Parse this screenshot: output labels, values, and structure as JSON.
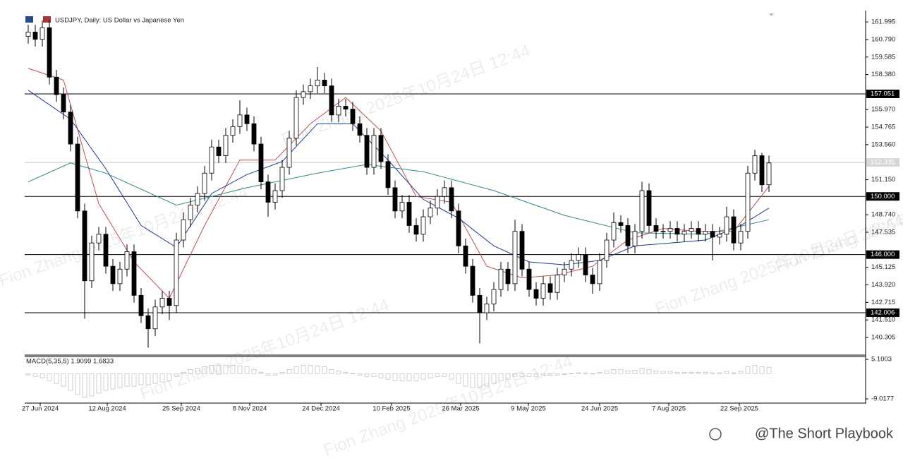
{
  "chart_data": {
    "type": "candlestick",
    "title": "USDJPY, Daily: US Dollar vs Japanese Yen",
    "x": [
      0,
      1,
      2,
      3,
      4,
      5,
      6,
      7,
      8,
      9,
      10,
      11,
      12,
      13,
      14,
      15,
      16,
      17,
      18,
      19,
      20,
      21,
      22,
      23,
      24,
      25,
      26,
      27,
      28,
      29,
      30,
      31,
      32,
      33,
      34,
      35,
      36,
      37,
      38,
      39,
      40,
      41,
      42,
      43,
      44,
      45,
      46,
      47,
      48,
      49,
      50,
      51,
      52,
      53,
      54,
      55,
      56,
      57,
      58,
      59,
      60,
      61,
      62,
      63,
      64,
      65,
      66,
      67,
      68,
      69,
      70,
      71,
      72,
      73,
      74,
      75,
      76,
      77,
      78,
      79,
      80,
      81,
      82,
      83,
      84,
      85,
      86,
      87,
      88,
      89,
      90,
      91,
      92,
      93,
      94,
      95,
      96,
      97,
      98,
      99,
      100,
      101,
      102,
      103,
      104,
      105
    ],
    "open": [
      161.0,
      161.3,
      160.8,
      161.6,
      158.2,
      157.0,
      155.8,
      153.6,
      149.0,
      144.2,
      146.8,
      147.4,
      145.2,
      144.0,
      145.0,
      146.2,
      143.2,
      141.8,
      140.9,
      142.4,
      143.0,
      142.5,
      147.0,
      148.4,
      149.4,
      150.2,
      151.6,
      153.4,
      152.8,
      154.2,
      154.8,
      155.6,
      155.0,
      153.6,
      151.0,
      149.6,
      150.4,
      152.0,
      154.0,
      156.8,
      157.2,
      157.6,
      158.0,
      157.6,
      155.6,
      156.2,
      156.0,
      155.0,
      154.2,
      152.0,
      154.2,
      152.4,
      150.6,
      149.0,
      149.6,
      148.0,
      147.4,
      148.6,
      149.2,
      150.0,
      150.6,
      149.0,
      146.6,
      145.2,
      143.2,
      142.0,
      142.6,
      143.6,
      145.0,
      144.0,
      147.6,
      145.0,
      143.6,
      143.0,
      144.0,
      143.4,
      144.6,
      145.0,
      145.6,
      146.0,
      144.6,
      144.0,
      145.6,
      147.0,
      148.2,
      148.0,
      146.6,
      147.6,
      150.4,
      148.0,
      147.6,
      147.6,
      147.8,
      147.4,
      147.6,
      147.8,
      147.4,
      147.6,
      147.2,
      147.4,
      148.6,
      146.8,
      147.6,
      151.6,
      152.8,
      150.8
    ],
    "high": [
      161.8,
      161.8,
      162.1,
      162.1,
      158.7,
      157.5,
      156.3,
      154.1,
      149.5,
      147.3,
      147.9,
      147.9,
      145.7,
      145.5,
      146.7,
      146.7,
      143.7,
      142.3,
      142.9,
      143.5,
      143.5,
      147.5,
      148.9,
      149.9,
      150.7,
      152.1,
      153.9,
      153.9,
      154.7,
      155.3,
      156.6,
      156.1,
      155.5,
      154.1,
      151.5,
      150.9,
      152.5,
      154.5,
      157.3,
      157.7,
      158.1,
      158.9,
      158.5,
      158.1,
      156.7,
      156.7,
      156.5,
      155.5,
      154.7,
      154.7,
      154.7,
      152.9,
      151.1,
      150.1,
      150.1,
      148.5,
      149.1,
      149.7,
      150.5,
      151.1,
      151.1,
      149.5,
      147.1,
      145.7,
      143.7,
      143.1,
      144.1,
      145.5,
      145.5,
      148.4,
      148.1,
      145.5,
      144.1,
      144.5,
      144.5,
      145.1,
      145.5,
      146.1,
      146.5,
      146.5,
      145.1,
      146.1,
      147.5,
      148.9,
      148.7,
      148.5,
      148.1,
      151.0,
      150.9,
      148.5,
      148.1,
      148.3,
      148.3,
      148.1,
      148.3,
      148.3,
      148.1,
      148.1,
      147.9,
      149.3,
      149.1,
      148.1,
      152.1,
      153.2,
      153.0,
      152.8
    ],
    "low": [
      160.5,
      160.3,
      160.3,
      157.7,
      156.5,
      155.3,
      153.1,
      148.5,
      141.6,
      143.7,
      146.3,
      144.7,
      143.5,
      143.5,
      144.5,
      142.7,
      141.3,
      139.6,
      140.4,
      141.9,
      141.5,
      142.0,
      146.5,
      147.9,
      148.9,
      149.7,
      151.1,
      152.3,
      152.3,
      153.7,
      154.3,
      154.5,
      153.1,
      150.5,
      148.6,
      149.1,
      149.9,
      151.5,
      153.5,
      156.3,
      156.7,
      157.1,
      157.1,
      155.1,
      155.1,
      155.5,
      154.5,
      153.7,
      151.5,
      151.5,
      151.9,
      150.1,
      148.5,
      148.5,
      147.5,
      146.9,
      146.9,
      148.1,
      148.7,
      149.5,
      148.5,
      146.1,
      144.7,
      142.7,
      139.9,
      141.5,
      142.1,
      143.1,
      143.5,
      143.5,
      144.5,
      143.1,
      142.5,
      142.5,
      142.9,
      142.9,
      144.1,
      144.5,
      145.1,
      144.1,
      143.3,
      143.5,
      145.1,
      146.5,
      147.5,
      146.1,
      146.1,
      147.1,
      147.5,
      147.1,
      147.1,
      147.1,
      146.9,
      146.9,
      147.1,
      146.9,
      146.9,
      145.6,
      146.7,
      146.9,
      146.3,
      146.3,
      147.1,
      151.1,
      150.3,
      150.3
    ],
    "close": [
      161.3,
      160.8,
      161.6,
      158.2,
      157.0,
      155.8,
      153.6,
      149.0,
      144.2,
      146.8,
      147.4,
      145.2,
      144.0,
      145.0,
      146.2,
      143.2,
      141.8,
      140.9,
      142.4,
      143.0,
      142.5,
      147.0,
      148.4,
      149.4,
      150.2,
      151.6,
      153.4,
      152.8,
      154.2,
      154.8,
      155.6,
      155.0,
      153.6,
      151.0,
      149.6,
      150.4,
      152.0,
      154.0,
      156.8,
      157.2,
      157.6,
      158.0,
      157.6,
      155.6,
      156.2,
      156.0,
      155.0,
      154.2,
      152.0,
      154.2,
      152.4,
      150.6,
      149.0,
      149.6,
      148.0,
      147.4,
      148.6,
      149.2,
      150.0,
      150.6,
      149.0,
      146.6,
      145.2,
      143.2,
      142.0,
      142.6,
      143.6,
      145.0,
      144.0,
      147.6,
      145.0,
      143.6,
      143.0,
      144.0,
      143.4,
      144.6,
      145.0,
      145.6,
      146.0,
      144.6,
      144.0,
      145.6,
      147.0,
      148.2,
      148.0,
      146.6,
      147.6,
      150.4,
      148.0,
      147.6,
      147.6,
      147.8,
      147.4,
      147.6,
      147.8,
      147.4,
      147.6,
      147.2,
      147.4,
      148.6,
      146.8,
      147.6,
      151.6,
      152.8,
      150.8,
      152.3
    ],
    "color": "#000000",
    "xlim": [
      -0.5,
      118.5
    ],
    "ylim": [
      139.14,
      162.63
    ],
    "xticks": [
      {
        "value": 1.7,
        "label": "27 Jun 2024"
      },
      {
        "value": 11.2,
        "label": "12 Aug 2024"
      },
      {
        "value": 21.7,
        "label": "25 Sep 2024"
      },
      {
        "value": 31.4,
        "label": "8 Nov 2024"
      },
      {
        "value": 41.5,
        "label": "24 Dec 2024"
      },
      {
        "value": 51.5,
        "label": "10 Feb 2025"
      },
      {
        "value": 61.3,
        "label": "26 Mar 2025"
      },
      {
        "value": 70.9,
        "label": "9 May 2025"
      },
      {
        "value": 81,
        "label": "24 Jun 2025"
      },
      {
        "value": 90.8,
        "label": "7 Aug 2025"
      },
      {
        "value": 100.8,
        "label": "22 Sep 2025"
      }
    ],
    "yticks": [
      161.995,
      {
        "value": 160.79,
        "label": "160.790"
      },
      159.585,
      {
        "value": 158.38,
        "label": "158.380"
      },
      {
        "value": 155.97,
        "label": "155.970"
      },
      154.765,
      {
        "value": 153.56,
        "label": "153.560"
      },
      {
        "value": 151.15,
        "label": "151.150"
      },
      {
        "value": 148.74,
        "label": "148.740"
      },
      147.535,
      145.125,
      {
        "value": 143.92,
        "label": "143.920"
      },
      142.715,
      {
        "value": 141.51,
        "label": "141.510"
      },
      140.305
    ],
    "levels": [
      157.051,
      {
        "value": 150,
        "label": "150.000"
      },
      {
        "value": 146,
        "label": "146.000"
      },
      142.006
    ],
    "current_price": 152.335,
    "moving_averages": [
      {
        "color": "#c0504d",
        "x": [
          0,
          5,
          10,
          15,
          20,
          25,
          30,
          35,
          40,
          45,
          50,
          55,
          60,
          65,
          70,
          75,
          80,
          85,
          90,
          95,
          100,
          105
        ],
        "values": [
          158.8,
          158.0,
          149.5,
          145.5,
          143.0,
          148.0,
          152.5,
          152.5,
          155.0,
          156.8,
          154.5,
          150.0,
          149.6,
          145.2,
          144.4,
          144.6,
          145.2,
          147.0,
          147.8,
          147.6,
          147.6,
          150.7
        ]
      },
      {
        "color": "#1f3a93",
        "x": [
          0,
          6,
          11,
          16,
          21,
          26,
          31,
          36,
          41,
          46,
          51,
          56,
          61,
          66,
          71,
          76,
          81,
          86,
          91,
          96,
          101,
          105
        ],
        "values": [
          157.3,
          155.3,
          151.9,
          148.0,
          146.5,
          150.2,
          151.5,
          152.4,
          155.0,
          155.0,
          152.5,
          149.8,
          148.5,
          146.6,
          145.5,
          145.3,
          145.6,
          146.6,
          146.8,
          147.0,
          148.0,
          149.2
        ]
      },
      {
        "color": "#2e8b8b",
        "x": [
          0,
          6,
          11,
          21,
          31,
          41,
          48,
          56,
          66,
          76,
          86,
          96,
          105
        ],
        "values": [
          151.0,
          152.3,
          151.6,
          149.4,
          150.6,
          151.6,
          152.2,
          151.7,
          150.4,
          148.7,
          147.5,
          147.4,
          148.4
        ]
      }
    ],
    "macd": {
      "title": "MACD(5,35,5) 1.9099 1.6833",
      "color": "#b0b0b0",
      "ylim": [
        -10.28,
        6.11
      ],
      "yticks": [
        5.1003,
        -9.0177
      ],
      "values": [
        -0.5,
        -1.0,
        -1.5,
        -2.5,
        -3.5,
        -4.5,
        -6.0,
        -7.5,
        -8.5,
        -8.0,
        -7.0,
        -6.0,
        -5.5,
        -5.0,
        -4.5,
        -4.5,
        -4.0,
        -4.0,
        -3.5,
        -3.0,
        -2.5,
        -1.0,
        0.5,
        1.5,
        2.0,
        2.5,
        3.0,
        3.0,
        3.0,
        3.0,
        2.8,
        2.5,
        1.5,
        0.5,
        -0.5,
        -0.5,
        0.5,
        1.5,
        2.5,
        3.0,
        3.0,
        2.8,
        2.5,
        1.5,
        1.0,
        0.5,
        0,
        -0.5,
        -1.0,
        -1.0,
        -1.5,
        -2.0,
        -2.5,
        -2.5,
        -2.5,
        -2.5,
        -2.0,
        -1.5,
        -1.0,
        -1.0,
        -2.0,
        -3.5,
        -4.5,
        -5.0,
        -5.0,
        -4.5,
        -3.5,
        -2.5,
        -2.0,
        -1.0,
        -1.0,
        -1.0,
        -1.0,
        -0.5,
        -0.5,
        -0.5,
        -0.3,
        0,
        0.3,
        0.3,
        0,
        0.5,
        1.0,
        1.5,
        1.5,
        1.0,
        1.2,
        2.0,
        1.5,
        1.0,
        0.8,
        0.8,
        0.5,
        0.5,
        0.5,
        0.5,
        0.5,
        0.3,
        0.3,
        0.8,
        0.3,
        0.8,
        2.5,
        3.0,
        2.5,
        2.3
      ]
    },
    "watermark": "Fion Zhang 2025年10月24日 12:44",
    "footer": "@The Short Playbook"
  }
}
